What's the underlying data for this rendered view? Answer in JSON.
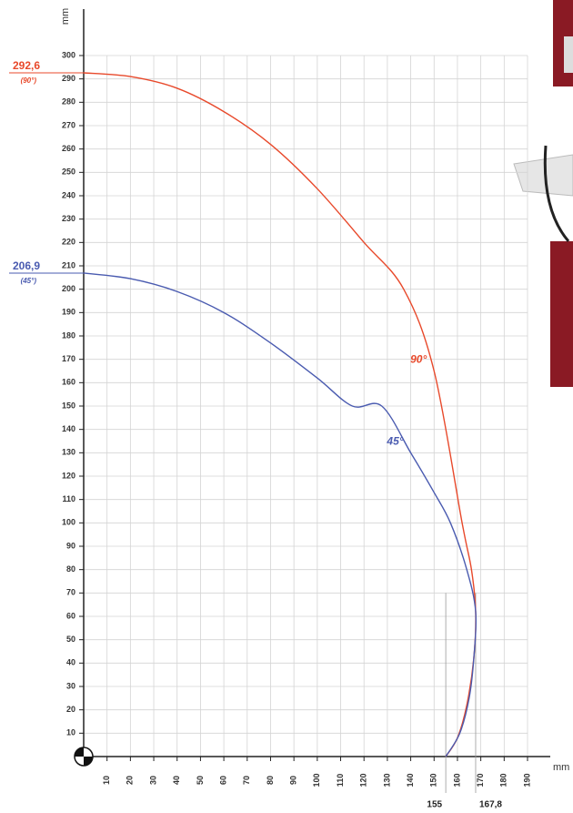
{
  "chart_data": {
    "type": "line",
    "y_label": "mm",
    "x_label": "mm",
    "xlim": [
      0,
      190
    ],
    "ylim": [
      0,
      300
    ],
    "xticks": [
      10,
      20,
      30,
      40,
      50,
      60,
      70,
      80,
      90,
      100,
      110,
      120,
      130,
      140,
      150,
      160,
      170,
      180,
      190
    ],
    "yticks": [
      10,
      20,
      30,
      40,
      50,
      60,
      70,
      80,
      90,
      100,
      110,
      120,
      130,
      140,
      150,
      160,
      170,
      180,
      190,
      200,
      210,
      220,
      230,
      240,
      250,
      260,
      270,
      280,
      290,
      300
    ],
    "grid": true,
    "series": [
      {
        "name": "90°",
        "color": "#e8492b",
        "x": [
          0,
          20,
          40,
          60,
          80,
          100,
          120,
          137,
          150,
          162,
          166,
          167.8,
          167,
          164,
          160,
          155
        ],
        "y": [
          292.6,
          291,
          286,
          276,
          262,
          243,
          220,
          200,
          165,
          100,
          80,
          62,
          42,
          22,
          8,
          0
        ]
      },
      {
        "name": "45°",
        "color": "#4a5bb0",
        "x": [
          0,
          20,
          40,
          60,
          80,
          100,
          115,
          127.6,
          140,
          150,
          157,
          164,
          167.8,
          167,
          165,
          161,
          155
        ],
        "y": [
          206.9,
          204.5,
          199,
          190,
          177,
          162,
          150,
          150,
          130,
          113,
          100,
          80,
          62,
          42,
          25,
          10,
          0
        ]
      }
    ],
    "x_marks": [
      {
        "value": 155,
        "label": "155"
      },
      {
        "value": 167.8,
        "label": "167,8"
      }
    ],
    "y_marks": [
      {
        "value": 292.6,
        "label": "292,6",
        "note": "(90°)",
        "color": "#e8492b"
      },
      {
        "value": 206.9,
        "label": "206,9",
        "note": "(45°)",
        "color": "#4a5bb0"
      }
    ]
  }
}
